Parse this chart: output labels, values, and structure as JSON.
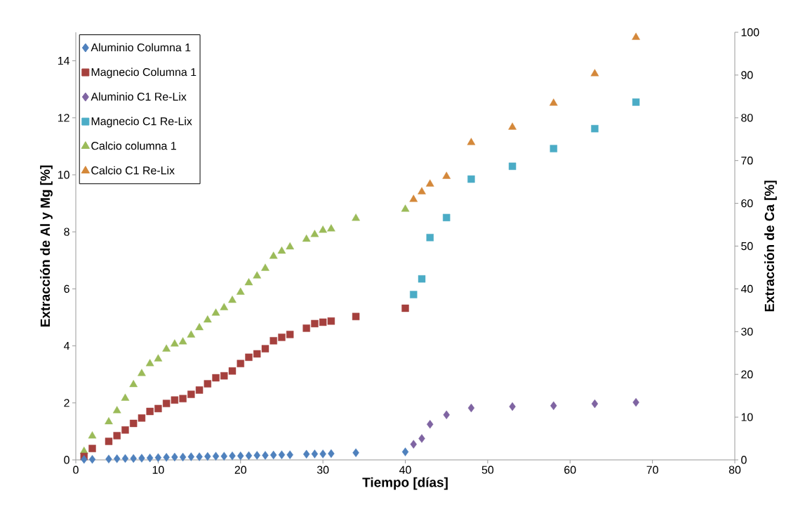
{
  "chart_data": {
    "type": "scatter",
    "xlabel": "Tiempo [días]",
    "ylabel": "Extracción de Al y Mg [%]",
    "y2label": "Extracción de Ca [%]",
    "xlim": [
      0,
      80
    ],
    "xticks": [
      0,
      10,
      20,
      30,
      40,
      50,
      60,
      70,
      80
    ],
    "ylim": [
      0,
      15
    ],
    "yticks": [
      0,
      2,
      4,
      6,
      8,
      10,
      12,
      14
    ],
    "y2lim": [
      0,
      100
    ],
    "y2ticks": [
      0,
      10,
      20,
      30,
      40,
      50,
      60,
      70,
      80,
      90,
      100
    ],
    "grid": false,
    "legend": "top left",
    "series": [
      {
        "name": "Aluminio Columna 1",
        "color": "#4f81bd",
        "marker": "diamond",
        "axis": "y",
        "x": [
          1,
          2,
          4,
          5,
          6,
          7,
          8,
          9,
          10,
          11,
          12,
          13,
          14,
          15,
          16,
          17,
          18,
          19,
          20,
          21,
          22,
          23,
          24,
          25,
          26,
          28,
          29,
          30,
          31,
          34,
          40
        ],
        "values": [
          0.02,
          0.02,
          0.03,
          0.04,
          0.05,
          0.05,
          0.06,
          0.07,
          0.08,
          0.09,
          0.1,
          0.1,
          0.11,
          0.11,
          0.12,
          0.13,
          0.13,
          0.14,
          0.14,
          0.15,
          0.16,
          0.16,
          0.17,
          0.18,
          0.18,
          0.2,
          0.21,
          0.21,
          0.22,
          0.25,
          0.28
        ]
      },
      {
        "name": "Magnecio Columna 1",
        "color": "#a5403d",
        "marker": "square",
        "axis": "y",
        "x": [
          1,
          2,
          4,
          5,
          6,
          7,
          8,
          9,
          10,
          11,
          12,
          13,
          14,
          15,
          16,
          17,
          18,
          19,
          20,
          21,
          22,
          23,
          24,
          25,
          26,
          28,
          29,
          30,
          31,
          34,
          40
        ],
        "values": [
          0.12,
          0.4,
          0.65,
          0.85,
          1.05,
          1.28,
          1.47,
          1.7,
          1.8,
          1.98,
          2.1,
          2.15,
          2.3,
          2.45,
          2.67,
          2.88,
          2.95,
          3.12,
          3.38,
          3.6,
          3.72,
          3.9,
          4.18,
          4.3,
          4.4,
          4.62,
          4.78,
          4.83,
          4.87,
          5.03,
          5.32
        ]
      },
      {
        "name": "Aluminio C1 Re-Lix",
        "color": "#7f64a2",
        "marker": "diamond",
        "axis": "y",
        "x": [
          41,
          42,
          43,
          45,
          48,
          53,
          58,
          63,
          68
        ],
        "values": [
          0.55,
          0.75,
          1.25,
          1.58,
          1.82,
          1.87,
          1.9,
          1.97,
          2.02
        ]
      },
      {
        "name": "Magnecio C1 Re-Lix",
        "color": "#4bacc6",
        "marker": "square",
        "axis": "y",
        "x": [
          41,
          42,
          43,
          45,
          48,
          53,
          58,
          63,
          68
        ],
        "values": [
          5.8,
          6.35,
          7.8,
          8.5,
          9.85,
          10.3,
          10.92,
          11.62,
          12.55
        ]
      },
      {
        "name": "Calcio columna 1",
        "color": "#9bbb59",
        "marker": "triangle",
        "axis": "y2",
        "x": [
          1,
          2,
          4,
          5,
          6,
          7,
          8,
          9,
          10,
          11,
          12,
          13,
          14,
          15,
          16,
          17,
          18,
          19,
          20,
          21,
          22,
          23,
          24,
          25,
          26,
          28,
          29,
          30,
          31,
          34,
          40
        ],
        "values": [
          2,
          5.6,
          8.9,
          11.5,
          14.4,
          17.6,
          20.2,
          22.5,
          23.6,
          25.9,
          27.1,
          27.6,
          29.2,
          30.9,
          32.7,
          34.3,
          35.6,
          37.3,
          39.2,
          41.4,
          43,
          44.8,
          47.6,
          48.8,
          49.8,
          51.6,
          52.7,
          53.7,
          54,
          56.5,
          58.6
        ]
      },
      {
        "name": "Calcio C1 Re-Lix",
        "color": "#d4883a",
        "marker": "triangle",
        "axis": "y2",
        "x": [
          41,
          42,
          43,
          45,
          48,
          53,
          58,
          63,
          68
        ],
        "values": [
          60.9,
          62.7,
          64.5,
          66.3,
          74.2,
          77.8,
          83.4,
          90.3,
          98.8
        ]
      }
    ]
  }
}
